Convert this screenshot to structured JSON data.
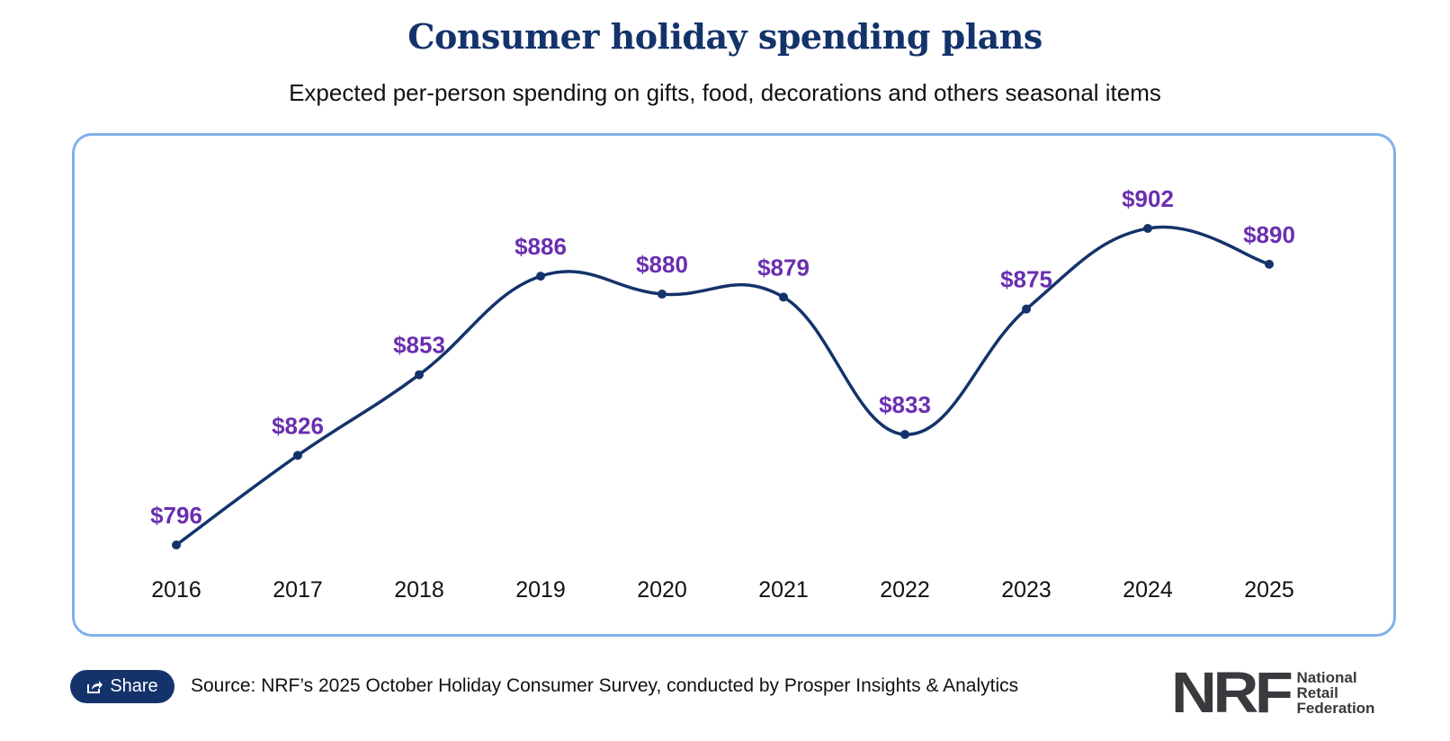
{
  "chart_data": {
    "type": "line",
    "title": "Consumer holiday spending plans",
    "subtitle": "Expected per-person spending on gifts, food, decorations and others seasonal items",
    "categories": [
      "2016",
      "2017",
      "2018",
      "2019",
      "2020",
      "2021",
      "2022",
      "2023",
      "2024",
      "2025"
    ],
    "values": [
      796,
      826,
      853,
      886,
      880,
      879,
      833,
      875,
      902,
      890
    ],
    "labels": [
      "$796",
      "$826",
      "$853",
      "$886",
      "$880",
      "$879",
      "$833",
      "$875",
      "$902",
      "$890"
    ],
    "xlabel": "",
    "ylabel": "",
    "ylim": [
      796,
      902
    ],
    "grid": false,
    "line_color": "#14336b",
    "label_color": "#6a2fb0"
  },
  "footer": {
    "share_label": "Share",
    "source": "Source: NRF’s 2025 October Holiday Consumer Survey, conducted by Prosper Insights & Analytics",
    "logo_text": "NRF",
    "logo_org": [
      "National",
      "Retail",
      "Federation"
    ]
  }
}
